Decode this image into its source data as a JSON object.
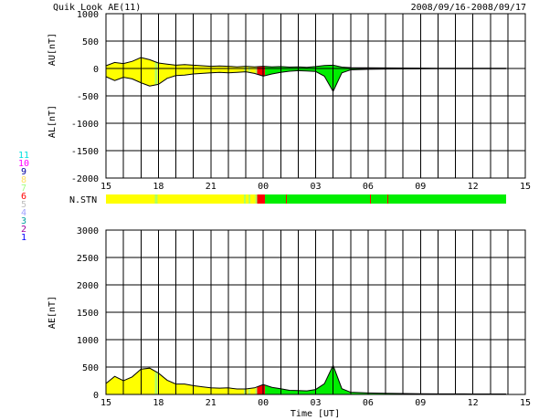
{
  "header": {
    "title": "Quik Look AE(11)",
    "date_range": "2008/09/16-2008/09/17"
  },
  "station_legend": {
    "items": [
      {
        "label": "11",
        "color": "#00e0e0"
      },
      {
        "label": "10",
        "color": "#ff00ff"
      },
      {
        "label": "9",
        "color": "#0000a0"
      },
      {
        "label": "8",
        "color": "#ffe060"
      },
      {
        "label": "7",
        "color": "#a0ff80"
      },
      {
        "label": "6",
        "color": "#ff0000"
      },
      {
        "label": "5",
        "color": "#c0c0c0"
      },
      {
        "label": "4",
        "color": "#a0a0ff"
      },
      {
        "label": "3",
        "color": "#00a0a0"
      },
      {
        "label": "2",
        "color": "#a000a0"
      },
      {
        "label": "1",
        "color": "#0000ff"
      }
    ]
  },
  "colors": {
    "yellow": "#ffff00",
    "green": "#00ee00",
    "red": "#ff0000",
    "lightgreen": "#b0ff60"
  },
  "chart_data": [
    {
      "type": "area",
      "panel": "upper",
      "ylabel_top": "AU[nT]",
      "ylabel_bottom": "AL[nT]",
      "ylim": [
        -2000,
        1000
      ],
      "yticks": [
        "1000",
        "500",
        "0",
        "-500",
        "-1000",
        "-1500",
        "-2000"
      ],
      "xlim": [
        15,
        39
      ],
      "xtick_labels": [
        "15",
        "18",
        "21",
        "00",
        "03",
        "06",
        "09",
        "12",
        "15"
      ],
      "grid": true,
      "series": [
        {
          "x": [
            15,
            15.5,
            16,
            16.5,
            17,
            17.5,
            18,
            18.5,
            19,
            19.5,
            20,
            20.5,
            21,
            21.5,
            22,
            22.5,
            23,
            23.5,
            24,
            24.5,
            25,
            25.5,
            26,
            26.5,
            27,
            27.5,
            28,
            28.5,
            29,
            30,
            31,
            32,
            33,
            34,
            35,
            36,
            37,
            37.9
          ],
          "au": [
            50,
            110,
            90,
            130,
            200,
            160,
            100,
            80,
            60,
            70,
            60,
            50,
            40,
            45,
            40,
            30,
            40,
            30,
            40,
            30,
            35,
            25,
            30,
            20,
            35,
            55,
            60,
            25,
            15,
            12,
            10,
            8,
            6,
            5,
            5,
            5,
            4,
            4
          ],
          "al": [
            -150,
            -220,
            -160,
            -190,
            -260,
            -320,
            -290,
            -180,
            -130,
            -120,
            -100,
            -90,
            -80,
            -70,
            -80,
            -70,
            -60,
            -90,
            -140,
            -100,
            -70,
            -50,
            -40,
            -45,
            -55,
            -140,
            -420,
            -80,
            -25,
            -15,
            -10,
            -8,
            -6,
            -5,
            -5,
            -4,
            -4,
            -4
          ]
        }
      ]
    },
    {
      "type": "area",
      "panel": "lower",
      "ylabel": "AE[nT]",
      "xlabel": "Time [UT]",
      "ylim": [
        0,
        3000
      ],
      "yticks": [
        "3000",
        "2500",
        "2000",
        "1500",
        "1000",
        "500",
        "0"
      ],
      "xlim": [
        15,
        39
      ],
      "xtick_labels": [
        "15",
        "18",
        "21",
        "00",
        "03",
        "06",
        "09",
        "12",
        "15"
      ],
      "grid": true,
      "series": [
        {
          "x": [
            15,
            15.5,
            16,
            16.5,
            17,
            17.5,
            18,
            18.5,
            19,
            19.5,
            20,
            20.5,
            21,
            21.5,
            22,
            22.5,
            23,
            23.5,
            24,
            24.5,
            25,
            25.5,
            26,
            26.5,
            27,
            27.5,
            28,
            28.5,
            29,
            30,
            31,
            32,
            33,
            34,
            35,
            36,
            37,
            37.9
          ],
          "ae": [
            200,
            330,
            250,
            320,
            460,
            480,
            390,
            260,
            190,
            190,
            160,
            140,
            120,
            115,
            120,
            100,
            100,
            120,
            180,
            130,
            105,
            75,
            70,
            65,
            90,
            195,
            530,
            105,
            40,
            27,
            20,
            16,
            12,
            10,
            10,
            9,
            8,
            8
          ]
        }
      ]
    }
  ],
  "station_bar": {
    "label": "N.STN",
    "segments": [
      {
        "from": 15,
        "to": 17.8,
        "color": "yellow"
      },
      {
        "from": 17.8,
        "to": 17.95,
        "color": "lightgreen"
      },
      {
        "from": 17.95,
        "to": 22.9,
        "color": "yellow"
      },
      {
        "from": 22.9,
        "to": 23.0,
        "color": "lightgreen"
      },
      {
        "from": 23.0,
        "to": 23.15,
        "color": "yellow"
      },
      {
        "from": 23.15,
        "to": 23.25,
        "color": "lightgreen"
      },
      {
        "from": 23.25,
        "to": 23.55,
        "color": "yellow"
      },
      {
        "from": 23.55,
        "to": 23.65,
        "color": "lightgreen"
      },
      {
        "from": 23.65,
        "to": 24.1,
        "color": "red"
      },
      {
        "from": 24.1,
        "to": 37.9,
        "color": "green"
      }
    ],
    "markers": [
      25.3,
      30.1,
      31.1
    ]
  }
}
